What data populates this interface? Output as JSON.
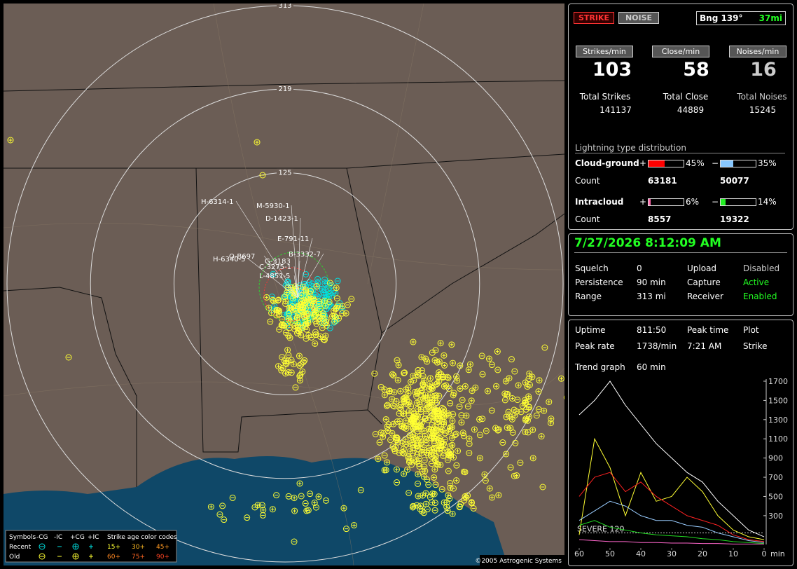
{
  "map": {
    "range_rings": [
      125,
      219,
      313
    ],
    "storm_labels": [
      "H-6314-1",
      "M-5930-1",
      "D-1423-1",
      "E-791-11",
      "O-B697",
      "H-6340-5",
      "B-3332-7",
      "G-3183",
      "C-3275-1",
      "L-4851-5"
    ],
    "legend": {
      "symbols_title": "Symbols",
      "columns": [
        "-CG",
        "-IC",
        "+CG",
        "+IC"
      ],
      "age_title": "Strike age color codes",
      "rows": [
        "Recent",
        "Old"
      ],
      "ages_recent": [
        "15+",
        "30+",
        "45+"
      ],
      "ages_old": [
        "60+",
        "75+",
        "90+"
      ]
    },
    "copyright": "©2005 Astrogenic Systems"
  },
  "status": {
    "buttons": [
      "STRIKE",
      "NOISE"
    ],
    "bearing": "Bng 139°",
    "distance": "37mi",
    "rate_headers": [
      "Strikes/min",
      "Close/min",
      "Noises/min"
    ],
    "rates": [
      103,
      58,
      16
    ],
    "total_labels": [
      "Total Strikes",
      "Total Close",
      "Total Noises"
    ],
    "totals": [
      141137,
      44889,
      15245
    ],
    "distribution_title": "Lightning type distribution",
    "rows": [
      {
        "name": "Cloud-ground",
        "plus": {
          "value": 45,
          "label": "45%",
          "color": "#ff0000"
        },
        "minus": {
          "value": 35,
          "label": "35%",
          "color": "#88c8ff"
        },
        "count_label": "Count",
        "counts": [
          63181,
          50077
        ]
      },
      {
        "name": "Intracloud",
        "plus": {
          "value": 6,
          "label": "6%",
          "color": "#ff66aa"
        },
        "minus": {
          "value": 14,
          "label": "14%",
          "color": "#22ee22"
        },
        "count_label": "Count",
        "counts": [
          8557,
          19322
        ]
      }
    ],
    "plus_sign": "+",
    "minus_sign": "−"
  },
  "settings": {
    "datetime": "7/27/2026 8:12:09 AM",
    "rows": [
      [
        "Squelch",
        "0",
        "Upload",
        "Disabled"
      ],
      [
        "Persistence",
        "90 min",
        "Capture",
        "Active"
      ],
      [
        "Range",
        "313 mi",
        "Receiver",
        "Enabled"
      ]
    ]
  },
  "stats": {
    "rows": [
      [
        "Uptime",
        "811:50",
        "Peak time",
        "7:21 AM",
        "Plot"
      ],
      [
        "Peak rate",
        "1738/min",
        "",
        "",
        "Strike"
      ]
    ],
    "trend_label": "Trend graph",
    "trend_span": "60 min"
  },
  "trend_graph": {
    "type": "line",
    "x": [
      60,
      55,
      50,
      45,
      40,
      35,
      30,
      25,
      20,
      15,
      10,
      5,
      0
    ],
    "xlim": [
      60,
      0
    ],
    "xticks": [
      60,
      50,
      40,
      30,
      20,
      10,
      0
    ],
    "x_unit": "min",
    "ylim": [
      0,
      1700
    ],
    "yticks": [
      300,
      500,
      700,
      900,
      1100,
      1300,
      1500,
      1700
    ],
    "severe": {
      "value": 120,
      "label": "SEVERE 120"
    },
    "series": [
      {
        "color": "#ffffff",
        "values": [
          1350,
          1500,
          1700,
          1450,
          1250,
          1050,
          900,
          750,
          650,
          450,
          300,
          150,
          80
        ]
      },
      {
        "color": "#ffff33",
        "values": [
          100,
          1100,
          800,
          300,
          750,
          450,
          500,
          700,
          550,
          300,
          150,
          80,
          50
        ]
      },
      {
        "color": "#ff2222",
        "values": [
          500,
          700,
          750,
          550,
          650,
          500,
          400,
          300,
          250,
          200,
          100,
          50,
          30
        ]
      },
      {
        "color": "#99ccff",
        "values": [
          250,
          350,
          450,
          400,
          300,
          250,
          250,
          200,
          180,
          120,
          80,
          40,
          20
        ]
      },
      {
        "color": "#22dd22",
        "values": [
          200,
          250,
          180,
          150,
          120,
          100,
          90,
          80,
          60,
          50,
          30,
          20,
          10
        ]
      },
      {
        "color": "#ff66cc",
        "values": [
          50,
          40,
          30,
          30,
          20,
          20,
          15,
          15,
          10,
          10,
          5,
          5,
          5
        ]
      }
    ]
  }
}
